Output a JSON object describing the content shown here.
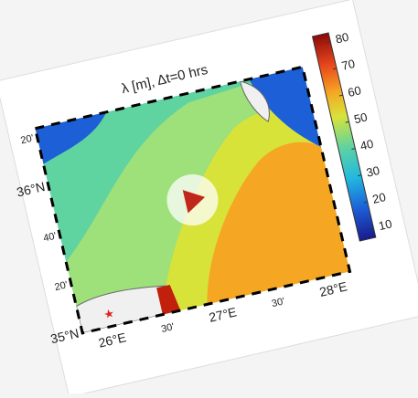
{
  "figure": {
    "title": "λ [m], Δt=0 hrs",
    "colorbar_ticks": [
      10,
      20,
      30,
      40,
      50,
      60,
      70,
      80
    ],
    "lat_labels": [
      "35°N",
      "20'",
      "40'",
      "36°N",
      "20'"
    ],
    "lon_labels": [
      "26°E",
      "30'",
      "27°E",
      "30'",
      "28°E"
    ]
  }
}
